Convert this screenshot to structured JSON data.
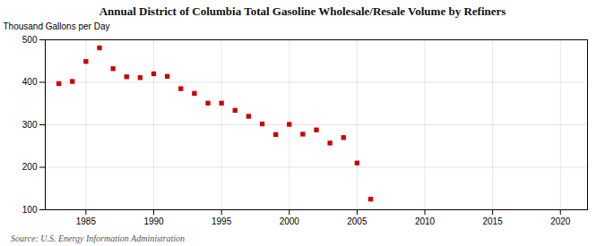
{
  "chart_data": {
    "type": "scatter",
    "title": "Annual District of Columbia Total Gasoline Wholesale/Resale Volume by Refiners",
    "ylabel": "Thousand Gallons per Day",
    "source": "Source: U.S. Energy Information Administration",
    "x": [
      1983,
      1984,
      1985,
      1986,
      1987,
      1988,
      1989,
      1990,
      1991,
      1992,
      1993,
      1994,
      1995,
      1996,
      1997,
      1998,
      1999,
      2000,
      2001,
      2002,
      2003,
      2004,
      2005,
      2006
    ],
    "values": [
      397,
      402,
      449,
      481,
      432,
      413,
      411,
      420,
      414,
      385,
      374,
      351,
      351,
      334,
      320,
      302,
      277,
      301,
      278,
      288,
      257,
      270,
      210,
      125
    ],
    "color": "#cc0000",
    "marker": "square",
    "xlim": [
      1982,
      2022
    ],
    "xticks": [
      1985,
      1990,
      1995,
      2000,
      2005,
      2010,
      2015,
      2020
    ],
    "ylim": [
      100,
      500
    ],
    "yticks": [
      100,
      200,
      300,
      400,
      500
    ],
    "grid": true
  }
}
